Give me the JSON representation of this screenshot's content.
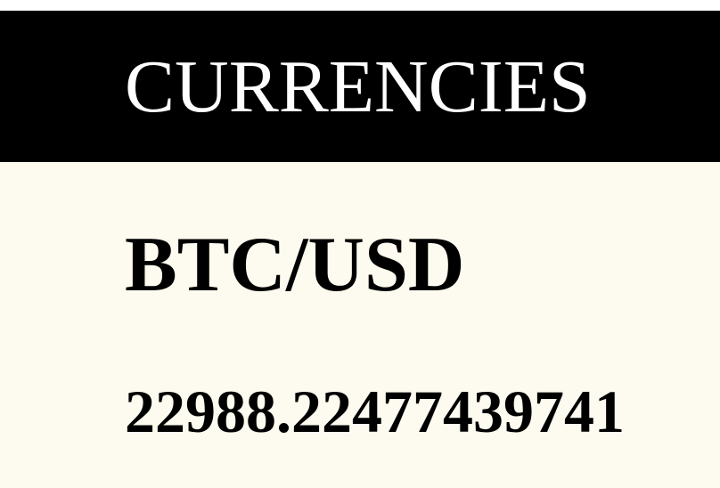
{
  "header": {
    "title": "CURRENCIES"
  },
  "ticker": {
    "pair": "BTC/USD",
    "price": "22988.22477439741"
  },
  "colors": {
    "header_background": "#000000",
    "header_text": "#ffffff",
    "page_background": "#fdfbef",
    "body_text": "#000000"
  }
}
